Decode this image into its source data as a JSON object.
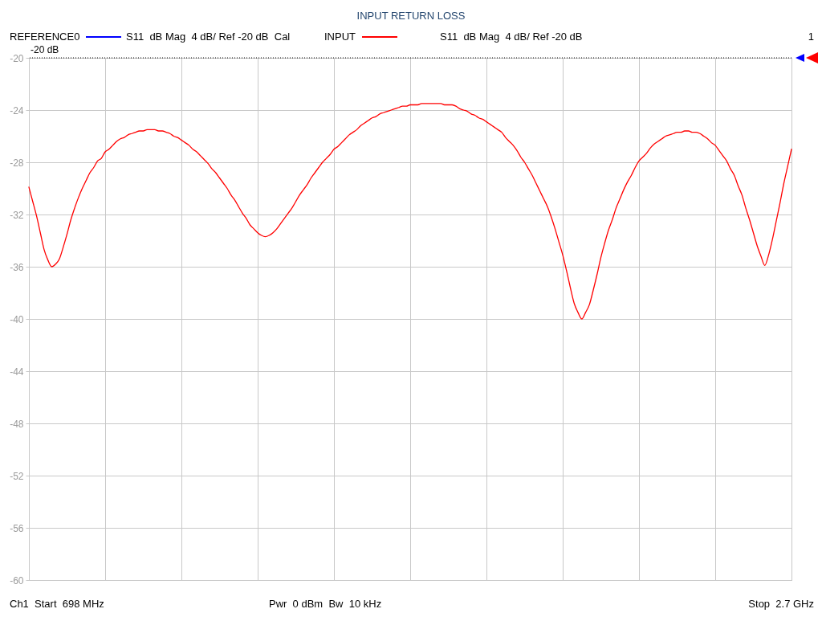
{
  "chart_data": {
    "type": "line",
    "title": "INPUT RETURN LOSS",
    "categories": [
      null,
      null,
      null,
      null,
      null,
      null,
      null,
      null,
      null,
      null,
      null,
      null,
      null,
      null,
      null,
      null,
      null,
      null,
      null,
      null,
      null,
      null,
      null,
      null,
      null,
      null,
      null,
      null,
      null,
      null,
      null,
      null,
      null,
      null,
      null,
      null,
      null,
      null,
      null,
      null,
      null,
      null,
      null,
      null,
      null,
      null,
      null,
      null,
      null,
      null,
      null,
      null,
      null,
      null,
      null,
      null,
      null,
      null,
      null,
      null,
      null,
      null,
      null,
      null,
      null,
      null,
      null,
      null,
      null,
      null,
      null,
      null,
      null,
      null,
      null,
      null,
      null,
      null,
      null,
      null,
      null,
      null,
      null,
      null,
      null,
      null,
      null,
      null,
      null,
      null,
      null,
      null,
      null,
      null,
      null,
      null,
      null,
      null,
      null,
      null,
      null,
      null,
      null,
      null,
      null,
      null,
      null,
      null,
      null,
      null,
      null,
      null,
      null,
      null,
      null,
      null,
      null,
      null,
      null,
      null,
      null,
      null,
      null,
      null,
      null,
      null,
      null,
      null,
      null,
      null,
      null,
      null,
      null,
      null,
      null,
      null,
      null,
      null,
      null,
      null,
      null,
      null,
      null,
      null,
      null,
      null,
      null,
      null,
      null,
      null,
      null,
      null,
      null,
      null,
      null,
      null,
      null,
      null,
      null,
      null,
      null,
      null,
      null,
      null,
      null,
      null,
      null,
      null,
      null,
      null,
      null,
      null,
      null,
      null,
      null,
      null,
      null,
      null,
      null,
      null,
      null,
      null,
      null,
      null,
      null,
      null,
      null,
      null,
      null,
      null,
      null,
      null,
      null,
      null,
      null,
      null,
      null,
      null,
      null,
      null,
      null
    ],
    "series": [
      {
        "name": "REFERENCE0",
        "color": "#0000ff",
        "values": [
          null,
          null,
          null,
          null,
          null,
          null,
          null,
          null,
          null,
          null,
          null,
          null,
          null,
          null,
          null,
          null,
          null,
          null,
          null,
          null,
          null,
          null,
          null,
          null,
          null,
          null,
          null,
          null,
          null,
          null,
          null,
          null,
          null,
          null,
          null,
          null,
          null,
          null,
          null,
          null,
          null,
          null,
          null,
          null,
          null,
          null,
          null,
          null,
          null,
          null,
          null,
          null,
          null,
          null,
          null,
          null,
          null,
          null,
          null,
          null,
          null,
          null,
          null,
          null,
          null,
          null,
          null,
          null,
          null,
          null,
          null,
          null,
          null,
          null,
          null,
          null,
          null,
          null,
          null,
          null,
          null,
          null,
          null,
          null,
          null,
          null,
          null,
          null,
          null,
          null,
          null,
          null,
          null,
          null,
          null,
          null,
          null,
          null,
          null,
          null,
          null,
          null,
          null,
          null,
          null,
          null,
          null,
          null,
          null,
          null,
          null,
          null,
          null,
          null,
          null,
          null,
          null,
          null,
          null,
          null,
          null,
          null,
          null,
          null,
          null,
          null,
          null,
          null,
          null,
          null,
          null,
          null,
          null,
          null,
          null,
          null,
          null,
          null,
          null,
          null,
          null,
          null,
          null,
          null,
          null,
          null,
          null,
          null,
          null,
          null,
          null,
          null,
          null,
          null,
          null,
          null,
          null,
          null,
          null,
          null,
          null,
          null,
          null,
          null,
          null,
          null,
          null,
          null,
          null,
          null,
          null,
          null,
          null,
          null,
          null,
          null,
          null,
          null,
          null,
          null,
          null,
          null,
          null,
          null,
          null,
          null,
          null,
          null,
          null,
          null,
          null,
          null,
          null,
          null,
          null,
          null,
          null,
          null,
          null,
          null,
          null
        ]
      },
      {
        "name": "INPUT",
        "color": "#ff0000",
        "values": [
          -29.9,
          -31.0,
          -32.1,
          -33.4,
          -34.7,
          -35.5,
          -36.0,
          -35.8,
          -35.4,
          -34.5,
          -33.5,
          -32.4,
          -31.5,
          -30.7,
          -30.0,
          -29.4,
          -28.8,
          -28.4,
          -27.9,
          -27.7,
          -27.2,
          -27.0,
          -26.7,
          -26.4,
          -26.2,
          -26.1,
          -25.9,
          -25.8,
          -25.7,
          -25.6,
          -25.6,
          -25.5,
          -25.5,
          -25.5,
          -25.6,
          -25.6,
          -25.7,
          -25.8,
          -26.0,
          -26.1,
          -26.3,
          -26.5,
          -26.7,
          -27.0,
          -27.2,
          -27.5,
          -27.8,
          -28.1,
          -28.5,
          -28.8,
          -29.2,
          -29.6,
          -30.0,
          -30.5,
          -30.9,
          -31.4,
          -31.9,
          -32.3,
          -32.8,
          -33.1,
          -33.4,
          -33.6,
          -33.7,
          -33.6,
          -33.4,
          -33.1,
          -32.7,
          -32.3,
          -31.9,
          -31.5,
          -31.0,
          -30.5,
          -30.1,
          -29.7,
          -29.2,
          -28.8,
          -28.4,
          -28.0,
          -27.7,
          -27.4,
          -27.0,
          -26.8,
          -26.5,
          -26.2,
          -25.9,
          -25.7,
          -25.5,
          -25.2,
          -25.0,
          -24.8,
          -24.6,
          -24.5,
          -24.3,
          -24.2,
          -24.1,
          -24.0,
          -23.9,
          -23.8,
          -23.7,
          -23.7,
          -23.6,
          -23.6,
          -23.6,
          -23.5,
          -23.5,
          -23.5,
          -23.5,
          -23.5,
          -23.5,
          -23.6,
          -23.6,
          -23.6,
          -23.7,
          -23.9,
          -24.0,
          -24.1,
          -24.3,
          -24.4,
          -24.6,
          -24.7,
          -24.9,
          -25.1,
          -25.3,
          -25.5,
          -25.7,
          -26.1,
          -26.4,
          -26.7,
          -27.1,
          -27.6,
          -28.0,
          -28.5,
          -29.0,
          -29.6,
          -30.2,
          -30.8,
          -31.4,
          -32.2,
          -33.1,
          -34.1,
          -35.1,
          -36.3,
          -37.6,
          -38.8,
          -39.5,
          -40.0,
          -39.5,
          -38.9,
          -37.8,
          -36.6,
          -35.3,
          -34.2,
          -33.2,
          -32.4,
          -31.5,
          -30.8,
          -30.1,
          -29.5,
          -29.0,
          -28.4,
          -27.9,
          -27.6,
          -27.3,
          -26.9,
          -26.6,
          -26.4,
          -26.2,
          -26.0,
          -25.9,
          -25.8,
          -25.7,
          -25.7,
          -25.6,
          -25.6,
          -25.7,
          -25.7,
          -25.8,
          -26.0,
          -26.2,
          -26.5,
          -26.7,
          -27.1,
          -27.5,
          -27.9,
          -28.5,
          -29.0,
          -29.8,
          -30.5,
          -31.5,
          -32.4,
          -33.4,
          -34.4,
          -35.2,
          -35.9,
          -35.1,
          -33.9,
          -32.5,
          -31.1,
          -29.6,
          -28.3,
          -27.0
        ]
      }
    ],
    "ylim": [
      -60,
      -20
    ],
    "yticks": [
      -60,
      -56,
      -52,
      -48,
      -44,
      -40,
      -36,
      -32,
      -28,
      -24,
      -20
    ],
    "grid": true,
    "legend": "top",
    "tick_labels": "y",
    "ref_lines": [
      {
        "axis": "y",
        "value": -20,
        "label": "-20 dB",
        "color": "#000000",
        "line_style": "dotted"
      }
    ],
    "annotations": [
      "S11  dB Mag  4 dB/ Ref -20 dB  Cal",
      "S11  dB Mag  4 dB/ Ref -20 dB",
      "1",
      "Ch1  Start  698 MHz",
      "Pwr  0 dBm  Bw  10 kHz",
      "Stop  2.7 GHz"
    ]
  }
}
